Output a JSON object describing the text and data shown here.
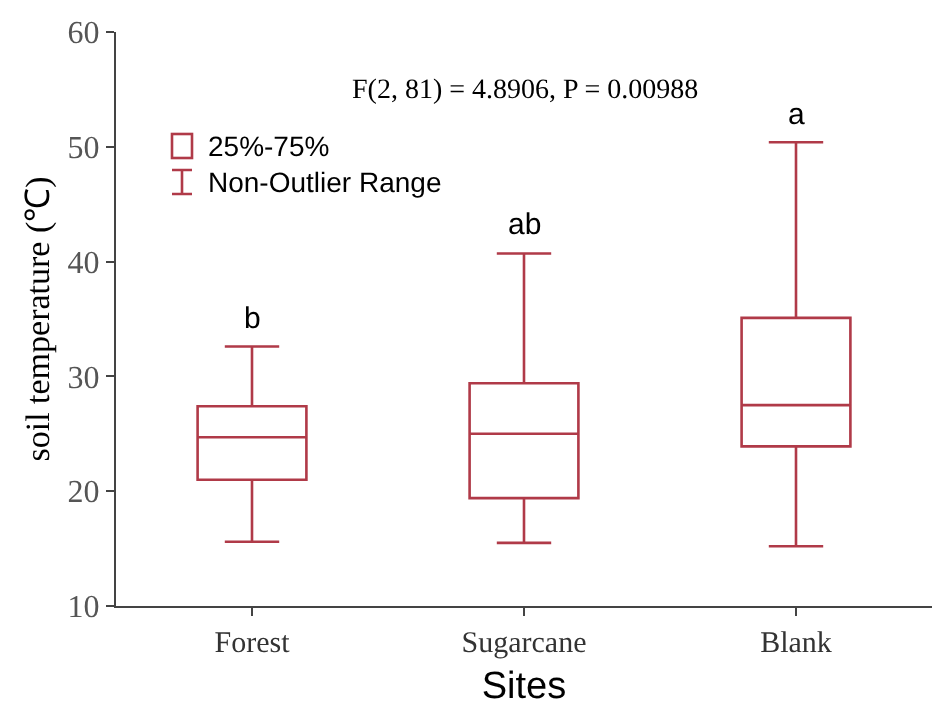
{
  "chart_data": {
    "type": "box",
    "xlabel": "Sites",
    "ylabel": "soil temperature (℃)",
    "categories": [
      "Forest",
      "Sugarcane",
      "Blank"
    ],
    "boxes": [
      {
        "low": 15.6,
        "q1": 21.0,
        "median": 24.7,
        "q3": 27.4,
        "high": 32.6
      },
      {
        "low": 15.5,
        "q1": 19.4,
        "median": 25.0,
        "q3": 29.4,
        "high": 40.7
      },
      {
        "low": 15.2,
        "q1": 23.9,
        "median": 27.5,
        "q3": 35.1,
        "high": 50.4
      }
    ],
    "color": "#b03a48",
    "ylim": [
      10,
      60
    ],
    "yticks": [
      10,
      20,
      30,
      40,
      50,
      60
    ],
    "grid": false,
    "annotations": [
      "F(2, 81) = 4.8906, P = 0.00988",
      "25%-75%",
      "Non-Outlier Range",
      {
        "text": "b",
        "x": "Forest",
        "y": 32.6
      },
      {
        "text": "ab",
        "x": "Sugarcane",
        "y": 40.7
      },
      {
        "text": "a",
        "x": "Blank",
        "y": 50.4
      }
    ]
  }
}
